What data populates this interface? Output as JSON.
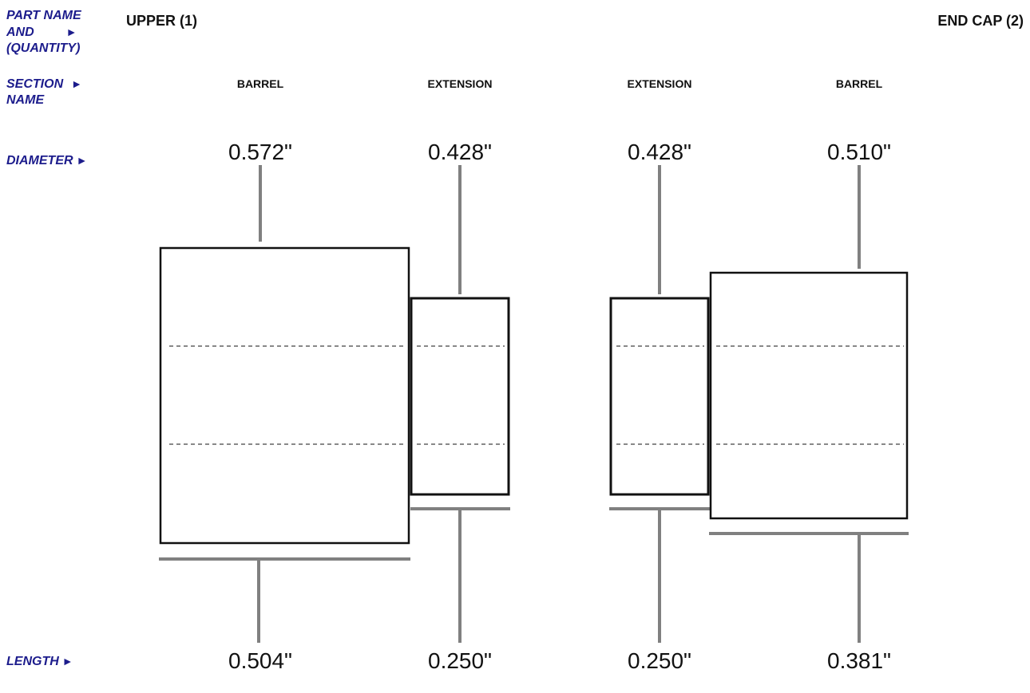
{
  "row_labels": {
    "part_name_line1": "PART NAME",
    "part_name_line2": "AND",
    "part_name_line3": "(QUANTITY)",
    "section_line1": "SECTION",
    "section_line2": "NAME",
    "diameter": "DIAMETER",
    "length": "LENGTH",
    "arrow": "►"
  },
  "parts": [
    {
      "name": "UPPER (1)",
      "sections": [
        {
          "name": "BARREL",
          "diameter": "0.572\"",
          "length": "0.504\""
        },
        {
          "name": "EXTENSION",
          "diameter": "0.428\"",
          "length": "0.250\""
        }
      ]
    },
    {
      "name": "END CAP (2)",
      "sections": [
        {
          "name": "EXTENSION",
          "diameter": "0.428\"",
          "length": "0.250\""
        },
        {
          "name": "BARREL",
          "diameter": "0.510\"",
          "length": "0.381\""
        }
      ]
    }
  ]
}
